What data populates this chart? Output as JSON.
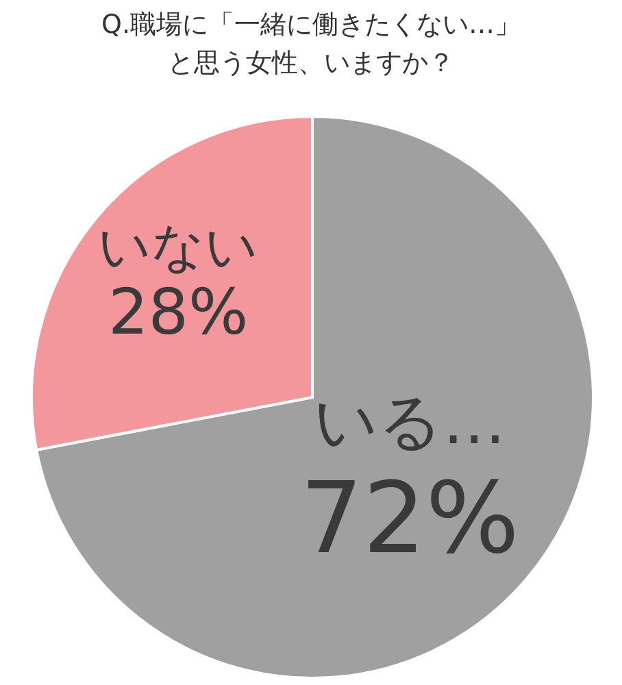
{
  "chart_data": {
    "type": "pie",
    "title": "Q.職場に「一緒に働きたくない…」",
    "subtitle": "と思う女性、いますか？",
    "categories": [
      "いる…",
      "いない"
    ],
    "values": [
      72,
      28
    ],
    "colors": [
      "#a0a0a0",
      "#f4979d"
    ],
    "value_labels": [
      "72%",
      "28%"
    ]
  }
}
